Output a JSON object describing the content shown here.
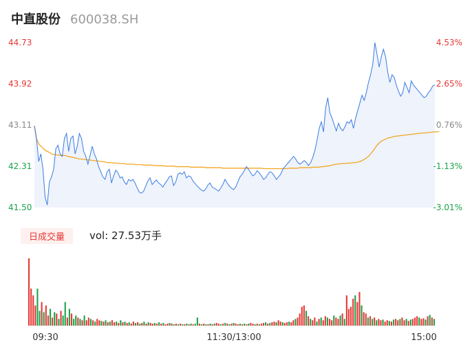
{
  "header": {
    "name": "中直股份",
    "code": "600038.SH"
  },
  "volume_panel": {
    "tab_label": "日成交量",
    "vol_prefix": "vol: ",
    "vol_value": "27.53万手"
  },
  "colors": {
    "price_line": "#3b7be0",
    "avg_line": "#f2a623",
    "up": "#e53935",
    "down": "#1aa34a",
    "neutral": "#888888",
    "fill": "#eef3fc"
  },
  "chart_data": [
    {
      "type": "line",
      "title": "",
      "y_ticks_left": [
        "44.73",
        "43.92",
        "43.11",
        "42.31",
        "41.50"
      ],
      "y_ticks_right": [
        "4.53%",
        "2.65%",
        "0.76%",
        "-1.13%",
        "-3.01%"
      ],
      "ylim": [
        41.5,
        44.73
      ],
      "x_ticks": [
        "09:30",
        "11:30/13:00",
        "15:00"
      ],
      "series": [
        {
          "values": [
            43.1,
            42.85,
            42.4,
            42.55,
            42.25,
            41.7,
            41.55,
            42.0,
            42.1,
            42.25,
            42.65,
            42.72,
            42.55,
            42.5,
            42.85,
            42.95,
            42.6,
            42.85,
            42.9,
            42.55,
            42.7,
            42.95,
            42.85,
            42.6,
            42.5,
            42.35,
            42.52,
            42.7,
            42.55,
            42.45,
            42.3,
            42.2,
            42.1,
            42.05,
            42.2,
            42.25,
            41.98,
            42.12,
            42.23,
            42.18,
            42.08,
            42.1,
            42.0,
            41.95,
            42.05,
            42.02,
            42.05,
            41.98,
            41.88,
            41.8,
            41.78,
            41.82,
            41.92,
            42.02,
            42.08,
            41.95,
            42.0,
            42.04,
            41.98,
            41.95,
            41.9,
            41.97,
            42.03,
            42.1,
            42.12,
            41.93,
            42.0,
            42.15,
            42.18,
            42.15,
            42.2,
            42.08,
            42.12,
            42.1,
            42.02,
            41.97,
            41.92,
            41.88,
            41.84,
            41.82,
            41.86,
            41.94,
            41.98,
            41.9,
            41.88,
            41.85,
            41.82,
            41.88,
            41.95,
            42.05,
            41.98,
            41.92,
            41.88,
            41.85,
            41.9,
            42.0,
            42.1,
            42.15,
            42.22,
            42.3,
            42.25,
            42.18,
            42.12,
            42.15,
            42.22,
            42.18,
            42.12,
            42.05,
            42.08,
            42.15,
            42.2,
            42.18,
            42.12,
            42.05,
            42.1,
            42.15,
            42.25,
            42.3,
            42.35,
            42.4,
            42.45,
            42.5,
            42.45,
            42.38,
            42.35,
            42.38,
            42.42,
            42.38,
            42.32,
            42.38,
            42.48,
            42.62,
            42.82,
            43.05,
            43.18,
            42.98,
            43.45,
            43.65,
            43.35,
            43.25,
            43.12,
            43.0,
            43.15,
            43.05,
            43.0,
            43.08,
            43.18,
            43.15,
            43.22,
            43.05,
            43.25,
            43.4,
            43.55,
            43.7,
            43.6,
            43.75,
            43.95,
            44.1,
            44.3,
            44.73,
            44.5,
            44.25,
            44.45,
            44.6,
            44.45,
            44.15,
            43.95,
            44.1,
            44.05,
            43.9,
            43.78,
            43.68,
            43.75,
            43.95,
            43.85,
            43.75,
            43.98,
            43.9,
            43.85,
            43.8,
            43.75,
            43.7,
            43.65,
            43.68,
            43.75,
            43.8,
            43.88,
            43.9
          ]
        },
        {
          "values": [
            43.1,
            42.85,
            42.75,
            42.7,
            42.66,
            42.62,
            42.6,
            42.58,
            42.55,
            42.54,
            42.53,
            42.53,
            42.52,
            42.52,
            42.52,
            42.51,
            42.5,
            42.49,
            42.48,
            42.47,
            42.46,
            42.45,
            42.45,
            42.44,
            42.44,
            42.43,
            42.43,
            42.42,
            42.42,
            42.41,
            42.41,
            42.4,
            42.4,
            42.39,
            42.38,
            42.38,
            42.38,
            42.37,
            42.37,
            42.37,
            42.36,
            42.36,
            42.36,
            42.35,
            42.35,
            42.35,
            42.35,
            42.34,
            42.34,
            42.34,
            42.34,
            42.33,
            42.33,
            42.33,
            42.33,
            42.33,
            42.32,
            42.32,
            42.32,
            42.32,
            42.32,
            42.31,
            42.31,
            42.31,
            42.31,
            42.31,
            42.3,
            42.3,
            42.3,
            42.3,
            42.3,
            42.3,
            42.3,
            42.29,
            42.29,
            42.29,
            42.29,
            42.29,
            42.29,
            42.29,
            42.28,
            42.28,
            42.28,
            42.28,
            42.28,
            42.28,
            42.28,
            42.28,
            42.27,
            42.27,
            42.27,
            42.27,
            42.27,
            42.27,
            42.27,
            42.27,
            42.27,
            42.27,
            42.27,
            42.27,
            42.27,
            42.27,
            42.27,
            42.27,
            42.27,
            42.27,
            42.27,
            42.26,
            42.26,
            42.26,
            42.26,
            42.26,
            42.26,
            42.26,
            42.26,
            42.26,
            42.26,
            42.26,
            42.26,
            42.27,
            42.27,
            42.27,
            42.27,
            42.27,
            42.28,
            42.28,
            42.28,
            42.28,
            42.28,
            42.28,
            42.29,
            42.29,
            42.29,
            42.29,
            42.3,
            42.3,
            42.31,
            42.31,
            42.32,
            42.33,
            42.34,
            42.35,
            42.35,
            42.36,
            42.36,
            42.36,
            42.37,
            42.37,
            42.37,
            42.38,
            42.38,
            42.39,
            42.4,
            42.42,
            42.44,
            42.47,
            42.5,
            42.55,
            42.6,
            42.66,
            42.72,
            42.76,
            42.8,
            42.82,
            42.84,
            42.86,
            42.87,
            42.88,
            42.89,
            42.9,
            42.9,
            42.91,
            42.91,
            42.92,
            42.92,
            42.93,
            42.93,
            42.94,
            42.94,
            42.95,
            42.95,
            42.96,
            42.96,
            42.96,
            42.97,
            42.97,
            42.98,
            42.98,
            42.98,
            42.99
          ]
        }
      ]
    },
    {
      "type": "bar",
      "title": "",
      "ylim": [
        0,
        100
      ],
      "values": [
        100,
        55,
        45,
        30,
        55,
        22,
        35,
        20,
        30,
        15,
        25,
        12,
        20,
        18,
        10,
        22,
        15,
        35,
        12,
        25,
        18,
        10,
        15,
        12,
        10,
        8,
        15,
        8,
        12,
        10,
        8,
        6,
        10,
        8,
        7,
        6,
        8,
        5,
        6,
        8,
        5,
        6,
        4,
        8,
        5,
        6,
        4,
        5,
        3,
        6,
        4,
        5,
        3,
        4,
        6,
        3,
        5,
        4,
        3,
        4,
        3,
        5,
        3,
        4,
        2,
        3,
        4,
        3,
        2,
        3,
        2,
        3,
        2,
        2,
        3,
        2,
        3,
        2,
        3,
        12,
        3,
        2,
        3,
        2,
        2,
        3,
        2,
        3,
        4,
        3,
        2,
        3,
        4,
        3,
        2,
        3,
        4,
        3,
        2,
        3,
        2,
        3,
        2,
        3,
        4,
        3,
        2,
        3,
        2,
        3,
        4,
        5,
        3,
        4,
        5,
        6,
        5,
        8,
        6,
        5,
        4,
        5,
        6,
        5,
        8,
        10,
        12,
        18,
        28,
        30,
        22,
        14,
        10,
        8,
        12,
        6,
        10,
        12,
        8,
        14,
        12,
        10,
        8,
        15,
        12,
        10,
        15,
        18,
        10,
        45,
        25,
        28,
        40,
        45,
        35,
        50,
        30,
        20,
        18,
        12,
        14,
        10,
        12,
        8,
        10,
        8,
        9,
        6,
        8,
        7,
        6,
        9,
        10,
        8,
        10,
        12,
        8,
        10,
        7,
        9,
        10,
        12,
        14,
        12,
        10,
        11,
        9,
        14,
        16,
        12,
        10
      ],
      "directions": [
        "up",
        "up",
        "up",
        "up",
        "down",
        "down",
        "up",
        "down",
        "up",
        "up",
        "down",
        "up",
        "down",
        "up",
        "down",
        "up",
        "down",
        "down",
        "up",
        "down",
        "up",
        "down",
        "down",
        "up",
        "down",
        "up",
        "down",
        "up",
        "up",
        "down",
        "up",
        "down",
        "up",
        "up",
        "down",
        "up",
        "down",
        "up",
        "down",
        "up",
        "up",
        "down",
        "up",
        "down",
        "up",
        "down",
        "up",
        "down",
        "up",
        "up",
        "down",
        "up",
        "down",
        "up",
        "down",
        "up",
        "down",
        "up",
        "up",
        "down",
        "up",
        "down",
        "up",
        "down",
        "up",
        "up",
        "down",
        "up",
        "down",
        "up",
        "down",
        "up",
        "down",
        "up",
        "down",
        "up",
        "down",
        "up",
        "down",
        "down",
        "up",
        "down",
        "up",
        "down",
        "up",
        "down",
        "up",
        "down",
        "up",
        "up",
        "down",
        "up",
        "down",
        "up",
        "down",
        "up",
        "down",
        "up",
        "up",
        "down",
        "up",
        "down",
        "up",
        "down",
        "up",
        "up",
        "down",
        "up",
        "down",
        "up",
        "up",
        "down",
        "up",
        "down",
        "up",
        "up",
        "down",
        "up",
        "up",
        "down",
        "up",
        "up",
        "down",
        "up",
        "up",
        "down",
        "up",
        "up",
        "up",
        "up",
        "down",
        "up",
        "down",
        "up",
        "up",
        "down",
        "up",
        "down",
        "up",
        "up",
        "down",
        "up",
        "up",
        "down",
        "up",
        "up",
        "down",
        "up",
        "down",
        "up",
        "up",
        "up",
        "up",
        "down",
        "up",
        "up",
        "down",
        "up",
        "up",
        "down",
        "up",
        "down",
        "up",
        "down",
        "up",
        "up",
        "down",
        "up",
        "up",
        "down",
        "up",
        "down",
        "up",
        "up",
        "down",
        "up",
        "up",
        "down",
        "up",
        "down",
        "up",
        "up",
        "up",
        "down",
        "up",
        "up",
        "down",
        "up",
        "down",
        "up",
        "down",
        "down"
      ]
    }
  ]
}
